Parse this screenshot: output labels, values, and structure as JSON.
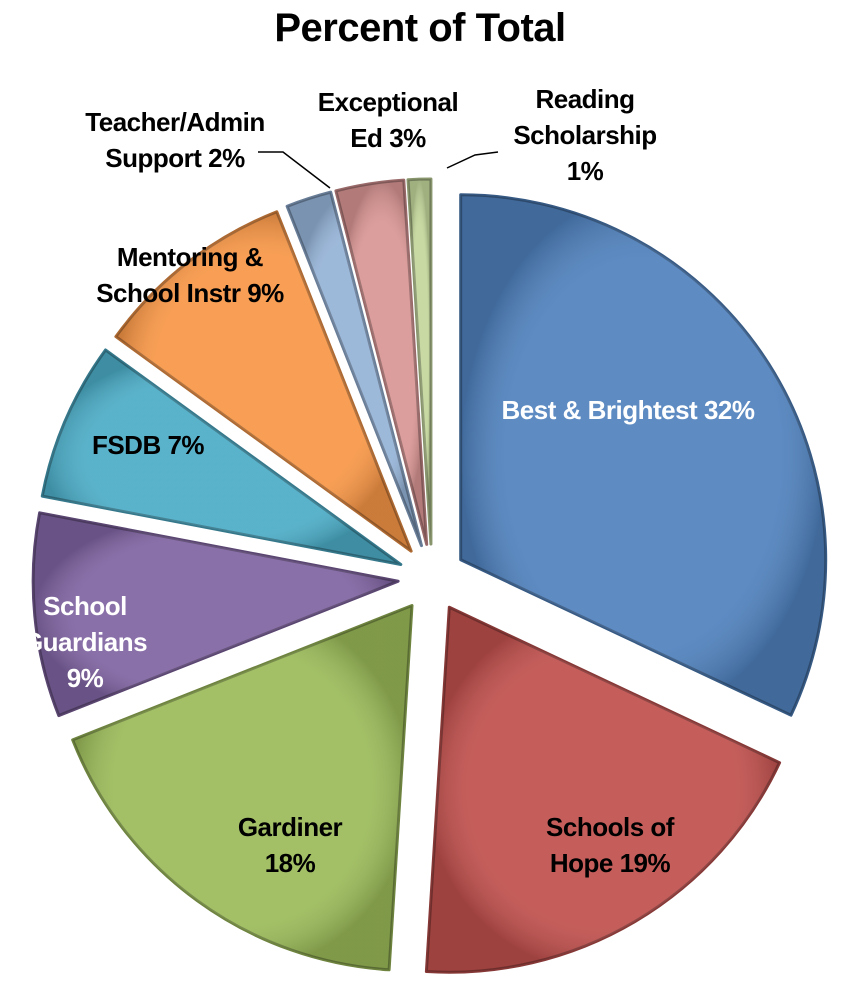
{
  "chart_data": {
    "type": "pie",
    "title": "Percent of Total",
    "categories": [
      "Best & Brightest",
      "Schools of Hope",
      "Gardiner",
      "School Guardians",
      "FSDB",
      "Mentoring & School Instr",
      "Teacher/Admin Support",
      "Exceptional Ed",
      "Reading Scholarship"
    ],
    "values": [
      32,
      19,
      18,
      9,
      7,
      9,
      2,
      3,
      1
    ],
    "value_labels": [
      "32%",
      "19%",
      "18%",
      "9%",
      "7%",
      "9%",
      "2%",
      "3%",
      "1%"
    ],
    "colors": [
      "#4f81bd",
      "#c0504d",
      "#9bbb59",
      "#8064a2",
      "#4bacc6",
      "#f79646",
      "#95b3d7",
      "#d99694",
      "#c3d69b"
    ]
  }
}
